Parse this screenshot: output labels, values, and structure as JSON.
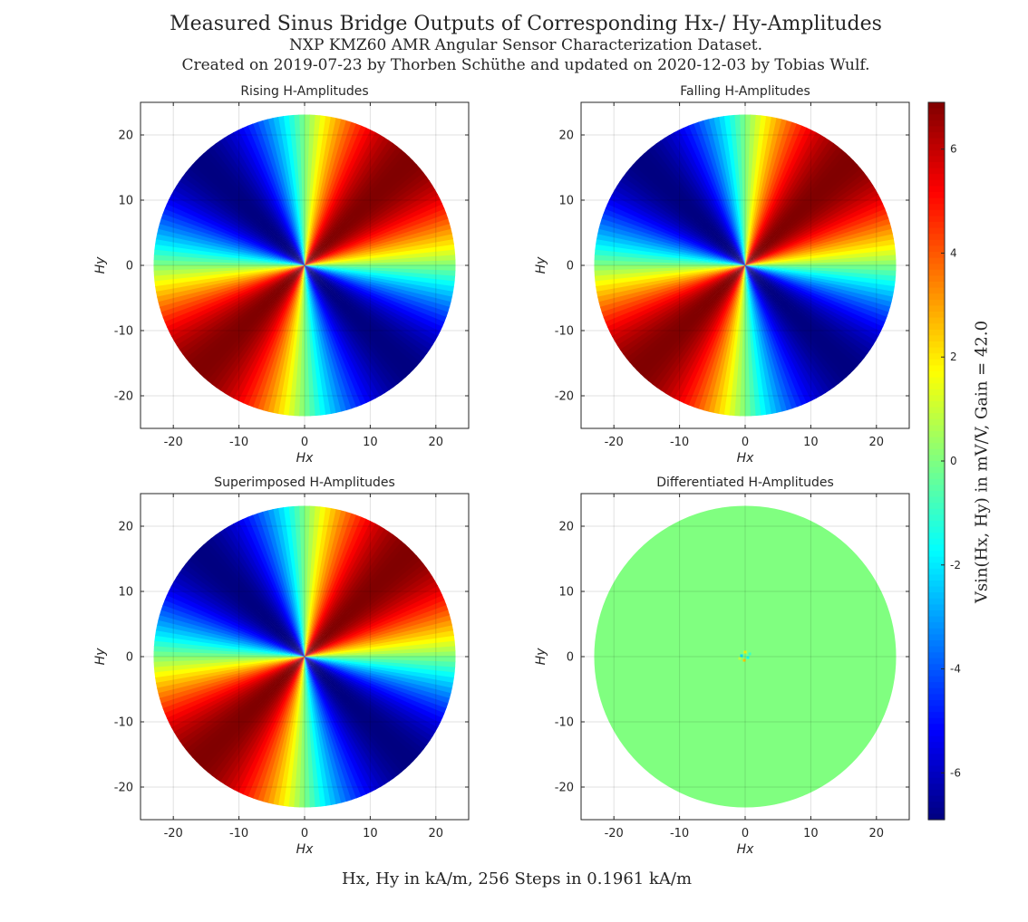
{
  "figure": {
    "title": "Measured Sinus Bridge Outputs of Corresponding Hx-/ Hy-Amplitudes",
    "subtitle": "NXP KMZ60 AMR Angular Sensor Characterization Dataset.",
    "subtitle2": "Created on 2019-07-23 by Thorben Schüthe and updated on 2020-12-03 by Tobias Wulf.",
    "footer_label": "Hx, Hy in kA/m, 256 Steps in 0.1961 kA/m",
    "colorbar_label": "Vsin(Hx, Hy) in mV/V, Gain = 42.0"
  },
  "chart_data": [
    {
      "type": "heatmap",
      "title": "Rising H-Amplitudes",
      "xlabel": "Hx",
      "ylabel": "Hy",
      "xlim": [
        -25,
        25
      ],
      "ylim": [
        -25,
        25
      ],
      "xticks": [
        -20,
        -10,
        0,
        10,
        20
      ],
      "yticks": [
        -20,
        -10,
        0,
        10,
        20
      ],
      "grid": true,
      "field": "sin2theta",
      "radius": 23,
      "amplitude": 6.9,
      "sign": 1
    },
    {
      "type": "heatmap",
      "title": "Falling H-Amplitudes",
      "xlabel": "Hx",
      "ylabel": "Hy",
      "xlim": [
        -25,
        25
      ],
      "ylim": [
        -25,
        25
      ],
      "xticks": [
        -20,
        -10,
        0,
        10,
        20
      ],
      "yticks": [
        -20,
        -10,
        0,
        10,
        20
      ],
      "grid": true,
      "field": "sin2theta",
      "radius": 23,
      "amplitude": 6.9,
      "sign": 1
    },
    {
      "type": "heatmap",
      "title": "Superimposed H-Amplitudes",
      "xlabel": "Hx",
      "ylabel": "Hy",
      "xlim": [
        -25,
        25
      ],
      "ylim": [
        -25,
        25
      ],
      "xticks": [
        -20,
        -10,
        0,
        10,
        20
      ],
      "yticks": [
        -20,
        -10,
        0,
        10,
        20
      ],
      "grid": true,
      "field": "sin2theta",
      "radius": 23,
      "amplitude": 6.9,
      "sign": 1
    },
    {
      "type": "heatmap",
      "title": "Differentiated H-Amplitudes",
      "xlabel": "Hx",
      "ylabel": "Hy",
      "xlim": [
        -25,
        25
      ],
      "ylim": [
        -25,
        25
      ],
      "xticks": [
        -20,
        -10,
        0,
        10,
        20
      ],
      "yticks": [
        -20,
        -10,
        0,
        10,
        20
      ],
      "grid": true,
      "field": "constant",
      "radius": 23,
      "value": 0
    }
  ],
  "colorbar": {
    "colormap": "jet",
    "range": [
      -6.9,
      6.9
    ],
    "ticks": [
      -6,
      -4,
      -2,
      0,
      2,
      4,
      6
    ]
  }
}
